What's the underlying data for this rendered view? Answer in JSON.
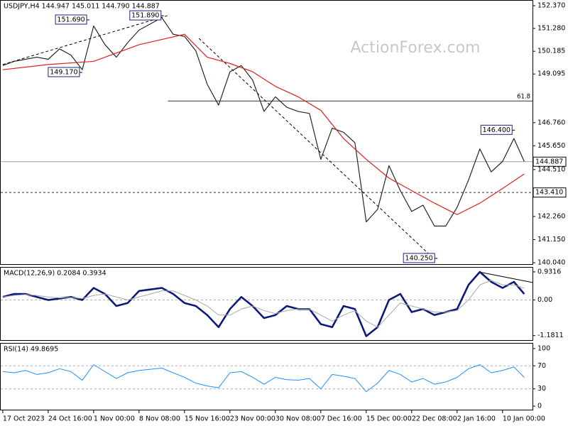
{
  "watermark": "ActionForex.com",
  "chart_data": [
    {
      "type": "line",
      "title": "USDJPY,H4 144.947 145.011 144.790 144.887",
      "x": [
        0,
        11,
        22,
        33,
        44,
        55,
        66,
        77,
        88,
        99,
        110,
        121,
        132,
        143,
        154,
        165,
        176,
        187,
        198,
        209,
        220,
        231,
        242,
        253,
        264,
        275,
        286,
        297,
        308,
        319,
        330,
        341,
        352,
        363,
        374,
        385,
        396,
        407,
        418,
        429,
        440,
        451,
        462,
        473,
        484,
        495,
        505
      ],
      "series": [
        {
          "color": "#1f2a1f",
          "width": 1.2,
          "values": [
            149.5,
            149.7,
            149.8,
            149.9,
            149.8,
            150.3,
            150.0,
            149.3,
            151.4,
            150.5,
            149.9,
            150.6,
            151.2,
            151.5,
            151.8,
            151.0,
            150.9,
            150.2,
            148.6,
            147.6,
            149.2,
            149.5,
            148.8,
            147.3,
            148.0,
            147.5,
            147.3,
            147.2,
            145.0,
            146.5,
            146.3,
            145.8,
            142.0,
            142.6,
            144.7,
            143.5,
            142.5,
            142.8,
            141.8,
            141.8,
            142.7,
            144.0,
            145.5,
            144.4,
            144.9,
            146.0,
            144.9
          ]
        },
        {
          "color": "#e02020",
          "width": 1.2,
          "x": [
            0,
            44,
            88,
            132,
            176,
            198,
            220,
            242,
            264,
            286,
            308,
            330,
            352,
            374,
            396,
            418,
            440,
            462,
            484,
            505
          ],
          "values": [
            149.3,
            149.55,
            149.7,
            150.5,
            151.0,
            149.9,
            149.6,
            149.2,
            148.5,
            148.0,
            147.35,
            146.0,
            145.0,
            144.1,
            143.5,
            142.9,
            142.35,
            142.9,
            143.6,
            144.3
          ]
        }
      ],
      "xlim": [
        -2,
        513
      ],
      "ylim": [
        139.94,
        152.61
      ],
      "yticks": [
        {
          "value": 152.37,
          "label": "152.370"
        },
        {
          "value": 151.28,
          "label": "151.280"
        },
        {
          "value": 150.185,
          "label": "150.185"
        },
        {
          "value": 149.095,
          "label": "149.095"
        },
        {
          "value": 146.76,
          "label": "146.760"
        },
        {
          "value": 145.65,
          "label": "145.650"
        },
        {
          "value": 144.51,
          "label": "144.510"
        },
        {
          "value": 142.26,
          "label": "142.260"
        },
        {
          "value": 141.15,
          "label": "141.150"
        },
        {
          "value": 140.04,
          "label": "140.040"
        }
      ],
      "levels": [
        {
          "value": 144.887,
          "label": "144.887",
          "style": "solid",
          "color": "#a0a0a0",
          "label_style": "box"
        },
        {
          "value": 143.41,
          "label": "143.410",
          "style": "dashed",
          "color": "#303030",
          "label_style": "box"
        },
        {
          "value": 147.8,
          "label": "61.8",
          "style": "solid",
          "color": "#303030",
          "from": 160,
          "label_style": "plain"
        }
      ],
      "trendlines": [
        {
          "x": [
            0,
            160
          ],
          "y": [
            149.55,
            151.9
          ],
          "style": "dashed"
        },
        {
          "x": [
            190,
            415
          ],
          "y": [
            150.8,
            140.35
          ],
          "style": "dashed"
        }
      ],
      "annotations": [
        {
          "x": 84,
          "value": 151.69,
          "label": "151.690"
        },
        {
          "x": 156,
          "value": 151.89,
          "label": "151.890"
        },
        {
          "x": 77,
          "value": 149.17,
          "label": "149.170"
        },
        {
          "x": 421,
          "value": 140.25,
          "label": "140.250"
        },
        {
          "x": 496,
          "value": 146.4,
          "label": "146.400"
        }
      ]
    },
    {
      "type": "line",
      "title": "MACD(12,26,9) 0.2084 0.3934",
      "x": [
        0,
        11,
        22,
        33,
        44,
        55,
        66,
        77,
        88,
        99,
        110,
        121,
        132,
        143,
        154,
        165,
        176,
        187,
        198,
        209,
        220,
        231,
        242,
        253,
        264,
        275,
        286,
        297,
        308,
        319,
        330,
        341,
        352,
        363,
        374,
        385,
        396,
        407,
        418,
        429,
        440,
        451,
        462,
        473,
        484,
        495,
        505
      ],
      "series": [
        {
          "color": "#0c1a7a",
          "width": 2.6,
          "values": [
            0.1,
            0.2,
            0.2,
            0.1,
            0.0,
            0.05,
            0.1,
            0.0,
            0.4,
            0.2,
            -0.2,
            -0.1,
            0.3,
            0.35,
            0.4,
            0.2,
            -0.1,
            -0.2,
            -0.5,
            -0.9,
            -0.3,
            0.1,
            -0.2,
            -0.6,
            -0.5,
            -0.2,
            -0.3,
            -0.3,
            -0.8,
            -0.9,
            -0.2,
            -0.3,
            -1.2,
            -0.9,
            0.0,
            0.2,
            -0.4,
            -0.3,
            -0.5,
            -0.4,
            -0.3,
            0.5,
            0.93,
            0.6,
            0.4,
            0.6,
            0.2
          ]
        },
        {
          "color": "#a8a8a8",
          "width": 1,
          "values": [
            0.1,
            0.15,
            0.18,
            0.15,
            0.1,
            0.07,
            0.08,
            0.05,
            0.15,
            0.2,
            0.1,
            0.0,
            0.1,
            0.2,
            0.3,
            0.3,
            0.15,
            0.0,
            -0.2,
            -0.5,
            -0.5,
            -0.3,
            -0.2,
            -0.35,
            -0.45,
            -0.35,
            -0.3,
            -0.3,
            -0.5,
            -0.7,
            -0.5,
            -0.35,
            -0.7,
            -0.9,
            -0.5,
            -0.1,
            -0.2,
            -0.3,
            -0.4,
            -0.4,
            -0.35,
            0.0,
            0.5,
            0.65,
            0.5,
            0.5,
            0.39
          ]
        }
      ],
      "xlim": [
        -2,
        513
      ],
      "ylim": [
        -1.352,
        1.071
      ],
      "yticks": [
        0.9316,
        {
          "value": 0,
          "label": "0.00"
        },
        -1.1811
      ],
      "levels": [
        {
          "value": 0,
          "style": "dashed",
          "color": "#b0b0b0"
        }
      ],
      "trendlines": [
        {
          "x": [
            461,
            513
          ],
          "y": [
            0.93,
            0.58
          ],
          "style": "solid"
        }
      ]
    },
    {
      "type": "line",
      "title": "RSI(14) 49.8695",
      "x": [
        0,
        11,
        22,
        33,
        44,
        55,
        66,
        77,
        88,
        99,
        110,
        121,
        132,
        143,
        154,
        165,
        176,
        187,
        198,
        209,
        220,
        231,
        242,
        253,
        264,
        275,
        286,
        297,
        308,
        319,
        330,
        341,
        352,
        363,
        374,
        385,
        396,
        407,
        418,
        429,
        440,
        451,
        462,
        473,
        484,
        495,
        505
      ],
      "series": [
        {
          "color": "#1e90ff",
          "width": 1,
          "values": [
            60,
            58,
            62,
            55,
            58,
            65,
            60,
            45,
            72,
            60,
            48,
            58,
            62,
            64,
            66,
            58,
            50,
            40,
            35,
            32,
            58,
            60,
            50,
            38,
            50,
            46,
            45,
            48,
            30,
            55,
            52,
            48,
            25,
            40,
            62,
            55,
            42,
            48,
            38,
            42,
            50,
            65,
            72,
            58,
            62,
            68,
            50
          ]
        }
      ],
      "xlim": [
        -2,
        513
      ],
      "ylim": [
        -7.3,
        108.5
      ],
      "yticks": [
        100,
        70,
        30,
        0
      ],
      "levels": [
        {
          "value": 70,
          "style": "dashed",
          "color": "#b0b0b0"
        },
        {
          "value": 30,
          "style": "dashed",
          "color": "#b0b0b0"
        }
      ],
      "xticks": [
        {
          "value": 0,
          "label": "17 Oct 2023"
        },
        {
          "value": 44,
          "label": "24 Oct 16:00"
        },
        {
          "value": 88,
          "label": "1 Nov 00:00"
        },
        {
          "value": 132,
          "label": "8 Nov 08:00"
        },
        {
          "value": 176,
          "label": "15 Nov 16:00"
        },
        {
          "value": 220,
          "label": "23 Nov 00:00"
        },
        {
          "value": 264,
          "label": "30 Nov 08:00"
        },
        {
          "value": 308,
          "label": "7 Dec 16:00"
        },
        {
          "value": 352,
          "label": "15 Dec 00:00"
        },
        {
          "value": 396,
          "label": "22 Dec 08:00"
        },
        {
          "value": 440,
          "label": "2 Jan 16:00"
        },
        {
          "value": 484,
          "label": "10 Jan 00:00"
        }
      ]
    }
  ]
}
